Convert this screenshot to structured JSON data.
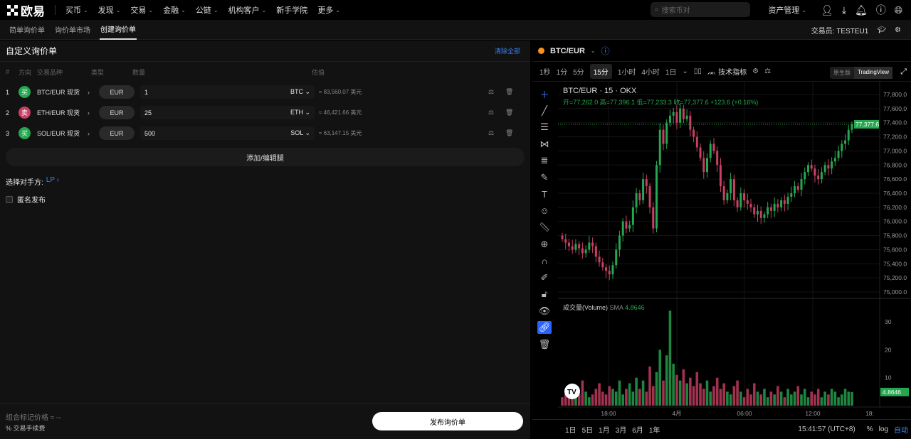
{
  "nav": {
    "logo": "欧易",
    "items": [
      "买币",
      "发现",
      "交易",
      "金融",
      "公链",
      "机构客户",
      "新手学院",
      "更多"
    ],
    "search_placeholder": "搜索币对",
    "assets": "资产管理"
  },
  "subnav": {
    "tabs": [
      "简单询价单",
      "询价单市场",
      "创建询价单"
    ],
    "active": 2,
    "trader_label": "交易员:",
    "trader": "TESTEU1"
  },
  "form": {
    "title": "自定义询价单",
    "clear": "清除全部",
    "columns": [
      "#",
      "方向",
      "交易品种",
      "类型",
      "数量",
      "估值"
    ],
    "legs": [
      {
        "n": "1",
        "side": "买",
        "side_color": "#25a750",
        "instrument": "BTC/EUR 现货",
        "type": "EUR",
        "qty": "1",
        "unit": "BTC",
        "value": "≈ 83,560.07 美元"
      },
      {
        "n": "2",
        "side": "卖",
        "side_color": "#ca3f64",
        "instrument": "ETH/EUR 现货",
        "type": "EUR",
        "qty": "25",
        "unit": "ETH",
        "value": "≈ 46,421.66 美元"
      },
      {
        "n": "3",
        "side": "买",
        "side_color": "#25a750",
        "instrument": "SOL/EUR 现货",
        "type": "EUR",
        "qty": "500",
        "unit": "SOL",
        "value": "≈ 63,147.15 美元"
      }
    ],
    "add_leg": "添加/编辑腿",
    "counterparty_label": "选择对手方:",
    "counterparty": "LP",
    "anonymous": "匿名发布",
    "mark_price_label": "组合标记价格",
    "mark_price": "≈ --",
    "fee": "% 交易手续费",
    "publish": "发布询价单"
  },
  "chart": {
    "pair": "BTC/EUR",
    "timeframes": [
      "1秒",
      "1分",
      "5分",
      "15分",
      "1小时",
      "4小时",
      "1日"
    ],
    "active_tf": 3,
    "indicators": "技术指标",
    "versions": [
      "原生版",
      "TradingView"
    ],
    "legend_title": "BTC/EUR · 15 · OKX",
    "ohlc": "开=77,262.0 高=77,396.1 低=77,233.3 收=77,377.6 +123.6 (+0.16%)",
    "volume_label": "成交量(Volume)",
    "sma_label": "SMA",
    "sma": "4.8646",
    "ranges": [
      "1日",
      "5日",
      "1月",
      "3月",
      "6月",
      "1年"
    ],
    "time": "15:41:57 (UTC+8)",
    "pct": "%",
    "log": "log",
    "auto": "自动",
    "last_price": "77,377.6",
    "last_volume": "4.8646",
    "up_color": "#25a750",
    "down_color": "#ca3f64"
  },
  "chart_data": {
    "type": "candlestick",
    "price_ticks": [
      77800,
      77600,
      77400,
      77200,
      77000,
      76800,
      76600,
      76400,
      76200,
      76000,
      75800,
      75600,
      75400,
      75200,
      75000
    ],
    "volume_ticks": [
      30,
      20,
      10
    ],
    "time_ticks": [
      "18:00",
      "4月",
      "06:00",
      "12:00",
      "18:"
    ],
    "close": [
      75750,
      75700,
      75650,
      75600,
      75680,
      75620,
      75550,
      75600,
      75700,
      75650,
      75500,
      75420,
      75350,
      75300,
      75250,
      75380,
      75600,
      75800,
      76000,
      75900,
      75950,
      76200,
      76400,
      76300,
      76600,
      76500,
      76200,
      75900,
      76800,
      77300,
      77100,
      77400,
      77500,
      77550,
      77400,
      77600,
      77450,
      77500,
      77300,
      77200,
      77050,
      76900,
      76700,
      76900,
      77100,
      77000,
      76800,
      76500,
      76300,
      76400,
      76600,
      76300,
      76200,
      76400,
      76300,
      76250,
      76200,
      76100,
      76150,
      76050,
      76100,
      76200,
      76150,
      76250,
      76200,
      76300,
      76250,
      76350,
      76400,
      76500,
      76450,
      76600,
      76700,
      76800,
      76750,
      76650,
      76600,
      76700,
      76800,
      76750,
      76850,
      76900,
      77000,
      77100,
      77150,
      77300,
      77377.6
    ],
    "volume": [
      3,
      4,
      5,
      3,
      6,
      4,
      9,
      5,
      3,
      4,
      6,
      8,
      5,
      4,
      7,
      6,
      5,
      9,
      4,
      6,
      8,
      5,
      10,
      6,
      9,
      5,
      14,
      7,
      12,
      20,
      9,
      18,
      34,
      15,
      11,
      9,
      13,
      8,
      10,
      7,
      12,
      8,
      6,
      9,
      5,
      7,
      10,
      6,
      8,
      5,
      4,
      7,
      9,
      5,
      3,
      6,
      4,
      8,
      5,
      4,
      6,
      3,
      5,
      4,
      7,
      5,
      3,
      6,
      4,
      5,
      7,
      4,
      6,
      3,
      5,
      4,
      6,
      3,
      5,
      4,
      6,
      5,
      3,
      4,
      6,
      5,
      4.86
    ]
  }
}
